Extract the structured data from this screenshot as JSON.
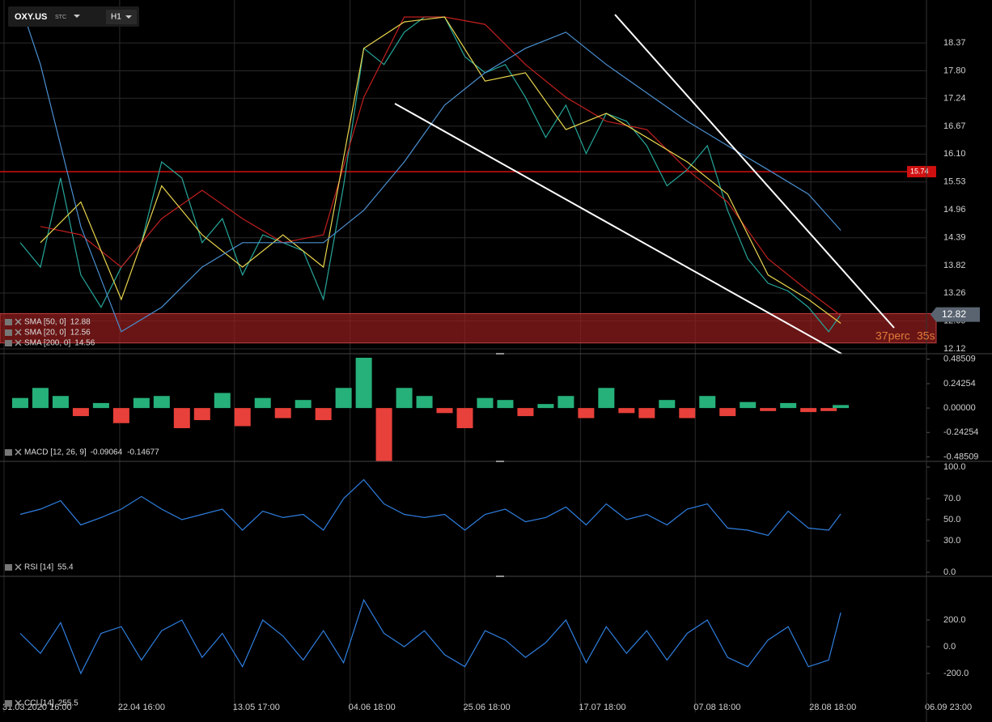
{
  "header": {
    "symbol": "OXY.US",
    "exchange": "STC",
    "interval": "H1"
  },
  "annotation": {
    "left": "37perc",
    "right": "35s"
  },
  "chart_data": [
    {
      "type": "line",
      "xlim": [
        0,
        229.2
      ],
      "ylim": [
        12.02,
        18.95
      ],
      "yticks": [
        18.37,
        {
          "value": 17.8,
          "label": "17.80"
        },
        17.24,
        16.67,
        {
          "value": 16.1,
          "label": "16.10"
        },
        15.53,
        14.96,
        14.39,
        13.82,
        13.26,
        12.69,
        12.12
      ],
      "grid": true,
      "hline": {
        "value": 15.74,
        "color": "#d01010"
      },
      "last_price": 12.82,
      "zone": [
        12.24,
        12.84
      ],
      "series": [
        {
          "color": "#26a69a",
          "x": [
            5,
            10,
            15,
            20,
            25,
            30,
            35,
            40,
            45,
            50,
            55,
            60,
            65,
            70,
            75,
            80,
            85,
            90,
            95,
            100,
            105,
            110,
            115,
            120,
            125,
            130,
            135,
            140,
            145,
            150,
            155,
            160,
            165,
            170,
            175,
            180,
            185,
            190,
            195,
            200,
            205,
            208
          ],
          "values": [
            14.29,
            13.79,
            15.61,
            13.63,
            12.97,
            13.79,
            14.29,
            15.94,
            15.61,
            14.29,
            14.78,
            13.63,
            14.45,
            14.29,
            14.12,
            13.13,
            15.45,
            18.26,
            17.93,
            18.59,
            18.9,
            18.9,
            18.09,
            17.76,
            17.93,
            17.26,
            16.44,
            17.1,
            16.11,
            16.93,
            16.77,
            16.27,
            15.45,
            15.78,
            16.27,
            14.95,
            13.96,
            13.46,
            13.3,
            12.97,
            12.47,
            12.82
          ]
        },
        {
          "name": "SMA [50, 0]",
          "legend_value": 12.88,
          "color": "#c0201e",
          "x": [
            10,
            20,
            30,
            40,
            50,
            60,
            70,
            80,
            90,
            100,
            110,
            120,
            130,
            140,
            150,
            160,
            170,
            180,
            190,
            200,
            208
          ],
          "values": [
            14.62,
            14.45,
            13.79,
            14.78,
            15.36,
            14.78,
            14.29,
            14.45,
            17.26,
            18.9,
            18.9,
            18.75,
            17.93,
            17.26,
            16.77,
            16.6,
            15.78,
            15.12,
            13.96,
            13.3,
            12.8
          ]
        },
        {
          "name": "SMA [20, 0]",
          "legend_value": 12.56,
          "color": "#e8d44d",
          "x": [
            10,
            20,
            30,
            40,
            50,
            60,
            70,
            80,
            90,
            100,
            110,
            120,
            130,
            140,
            150,
            160,
            170,
            180,
            190,
            200,
            208
          ],
          "values": [
            14.29,
            15.12,
            13.13,
            15.45,
            14.45,
            13.79,
            14.45,
            13.79,
            18.26,
            18.8,
            18.9,
            17.59,
            17.76,
            16.6,
            16.93,
            16.44,
            15.94,
            15.28,
            13.63,
            13.13,
            12.64
          ]
        },
        {
          "name": "SMA [200, 0]",
          "legend_value": 14.56,
          "color": "#4a8fd0",
          "x": [
            6,
            10,
            20,
            30,
            40,
            50,
            60,
            70,
            80,
            90,
            100,
            110,
            120,
            130,
            140,
            150,
            160,
            170,
            180,
            190,
            200,
            208
          ],
          "values": [
            18.92,
            17.93,
            14.62,
            12.47,
            12.97,
            13.79,
            14.29,
            14.29,
            14.29,
            14.95,
            15.94,
            17.1,
            17.76,
            18.26,
            18.59,
            17.93,
            17.35,
            16.77,
            16.27,
            15.78,
            15.28,
            14.54
          ]
        }
      ]
    },
    {
      "type": "bar",
      "xlim": [
        0,
        229.2
      ],
      "ylim": [
        -0.53,
        0.54
      ],
      "yticks": [
        0.48509,
        0.24254,
        {
          "value": 0,
          "label": "0.00000"
        },
        -0.24254,
        -0.48509
      ],
      "name": "MACD [12, 26, 9]",
      "legend_values": [
        -0.09064,
        -0.14677
      ],
      "colors": {
        "up": "#26b07a",
        "down": "#e8403a"
      },
      "x": [
        5,
        10,
        15,
        20,
        25,
        30,
        35,
        40,
        45,
        50,
        55,
        60,
        65,
        70,
        75,
        80,
        85,
        90,
        95,
        100,
        105,
        110,
        115,
        120,
        125,
        130,
        135,
        140,
        145,
        150,
        155,
        160,
        165,
        170,
        175,
        180,
        185,
        190,
        195,
        200,
        205,
        208
      ],
      "values": [
        0.1,
        0.2,
        0.12,
        -0.08,
        0.05,
        -0.15,
        0.1,
        0.12,
        -0.2,
        -0.12,
        0.15,
        -0.18,
        0.1,
        -0.1,
        0.08,
        -0.12,
        0.2,
        0.5,
        -0.53,
        0.2,
        0.12,
        -0.05,
        -0.2,
        0.1,
        0.08,
        -0.08,
        0.04,
        0.12,
        -0.1,
        0.2,
        -0.05,
        -0.1,
        0.08,
        -0.1,
        0.12,
        -0.08,
        0.06,
        -0.03,
        0.05,
        -0.04,
        -0.03,
        0.03
      ]
    },
    {
      "type": "line",
      "xlim": [
        0,
        229.2
      ],
      "ylim": [
        -3.8,
        105.4
      ],
      "yticks": [
        {
          "value": 100,
          "label": "100.0"
        },
        {
          "value": 70,
          "label": "70.0"
        },
        {
          "value": 50,
          "label": "50.0"
        },
        {
          "value": 30,
          "label": "30.0"
        },
        {
          "value": 0,
          "label": "0.0"
        }
      ],
      "x": [
        5,
        10,
        15,
        20,
        25,
        30,
        35,
        40,
        45,
        50,
        55,
        60,
        65,
        70,
        75,
        80,
        85,
        90,
        95,
        100,
        105,
        110,
        115,
        120,
        125,
        130,
        135,
        140,
        145,
        150,
        155,
        160,
        165,
        170,
        175,
        180,
        185,
        190,
        195,
        200,
        205,
        208
      ],
      "series": [
        {
          "name": "RSI [14]",
          "legend_value": 55.4,
          "color": "#2f7fe0",
          "values": [
            55,
            60,
            68,
            45,
            52,
            60,
            72,
            60,
            50,
            55,
            60,
            40,
            58,
            52,
            55,
            40,
            70,
            88,
            65,
            55,
            52,
            55,
            40,
            55,
            60,
            48,
            52,
            62,
            45,
            65,
            50,
            55,
            45,
            60,
            65,
            42,
            40,
            35,
            58,
            42,
            40,
            55.4
          ]
        }
      ]
    },
    {
      "type": "line",
      "xlim": [
        0,
        229.2
      ],
      "ylim": [
        -491,
        527
      ],
      "yticks": [
        {
          "value": 200,
          "label": "200.0"
        },
        {
          "value": 0,
          "label": "0.0"
        },
        {
          "value": -200,
          "label": "-200.0"
        }
      ],
      "xticks": [
        {
          "value": 1,
          "label": "31.03.2020 16:00"
        },
        {
          "value": 29.6,
          "label": "22.04 16:00"
        },
        {
          "value": 58,
          "label": "13.05 17:00"
        },
        {
          "value": 86.6,
          "label": "04.06 18:00"
        },
        {
          "value": 115,
          "label": "25.06 18:00"
        },
        {
          "value": 143.6,
          "label": "17.07 18:00"
        },
        {
          "value": 172,
          "label": "07.08 18:00"
        },
        {
          "value": 200.6,
          "label": "28.08 18:00"
        },
        {
          "value": 229.2,
          "label": "06.09 23:00"
        }
      ],
      "x": [
        5,
        10,
        15,
        20,
        25,
        30,
        35,
        40,
        45,
        50,
        55,
        60,
        65,
        70,
        75,
        80,
        85,
        90,
        95,
        100,
        105,
        110,
        115,
        120,
        125,
        130,
        135,
        140,
        145,
        150,
        155,
        160,
        165,
        170,
        175,
        180,
        185,
        190,
        195,
        200,
        205,
        208
      ],
      "series": [
        {
          "name": "CCI [14]",
          "legend_value": 255.5,
          "color": "#2f7fe0",
          "values": [
            100,
            -50,
            180,
            -200,
            100,
            150,
            -100,
            120,
            200,
            -80,
            100,
            -150,
            200,
            80,
            -100,
            120,
            -120,
            350,
            100,
            0,
            120,
            -60,
            -150,
            120,
            50,
            -80,
            30,
            200,
            -120,
            150,
            -50,
            120,
            -100,
            100,
            200,
            -80,
            -150,
            50,
            150,
            -150,
            -100,
            255.5
          ]
        }
      ]
    }
  ]
}
